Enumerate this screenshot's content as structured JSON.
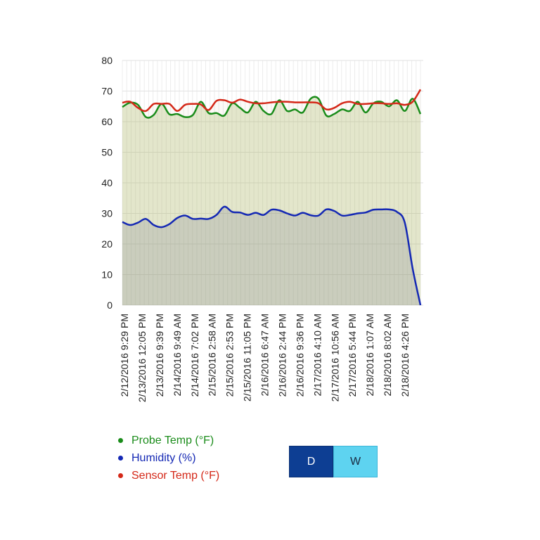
{
  "chart_data": {
    "type": "area",
    "ylim": [
      0,
      80
    ],
    "yticks": [
      0,
      10,
      20,
      30,
      40,
      50,
      60,
      70,
      80
    ],
    "grid": true,
    "x_tick_labels": [
      "2/12/2016 9:29 PM",
      "2/13/2016 12:05 PM",
      "2/13/2016 9:39 PM",
      "2/14/2016 9:49 AM",
      "2/14/2016 7:02 PM",
      "2/15/2016 2:58 AM",
      "2/15/2016 2:53 PM",
      "2/15/2016 11:05 PM",
      "2/16/2016 6:47 AM",
      "2/16/2016 2:44 PM",
      "2/16/2016 9:36 PM",
      "2/17/2016 4:10 AM",
      "2/17/2016 10:56 AM",
      "2/17/2016 5:44 PM",
      "2/18/2016 1:07 AM",
      "2/18/2016 8:02 AM",
      "2/18/2016 4:26 PM"
    ],
    "series": [
      {
        "name": "Probe Temp (°F)",
        "color": "#1a8c1a",
        "values": [
          64.8,
          66.2,
          65.5,
          61.5,
          62.2,
          65.8,
          62.4,
          62.5,
          61.5,
          62.2,
          66.5,
          62.8,
          62.8,
          62.0,
          66.0,
          64.5,
          63.0,
          66.5,
          63.5,
          62.5,
          67.0,
          63.5,
          64.0,
          63.0,
          67.5,
          67.5,
          62.0,
          62.5,
          64.0,
          63.5,
          66.5,
          63.0,
          66.0,
          66.5,
          65.0,
          67.0,
          63.5,
          67.5,
          62.5
        ]
      },
      {
        "name": "Humidity (%)",
        "color": "#1428b4",
        "values": [
          27.2,
          26.2,
          27.0,
          28.2,
          26.2,
          25.5,
          26.5,
          28.5,
          29.3,
          28.2,
          28.3,
          28.2,
          29.5,
          32.2,
          30.5,
          30.3,
          29.5,
          30.2,
          29.5,
          31.2,
          31.0,
          30.0,
          29.3,
          30.2,
          29.4,
          29.3,
          31.3,
          30.8,
          29.3,
          29.5,
          30.0,
          30.3,
          31.2,
          31.3,
          31.3,
          30.5,
          27.0,
          12.0,
          0.0
        ]
      },
      {
        "name": "Sensor Temp (°F)",
        "color": "#d42818",
        "values": [
          66.2,
          66.5,
          64.5,
          63.5,
          65.8,
          65.8,
          65.8,
          63.5,
          65.5,
          65.8,
          65.6,
          63.8,
          66.8,
          67.0,
          66.2,
          67.2,
          66.5,
          66.0,
          66.0,
          66.3,
          66.5,
          66.5,
          66.3,
          66.3,
          66.3,
          66.0,
          64.0,
          64.5,
          66.0,
          66.5,
          65.8,
          65.8,
          66.0,
          66.0,
          65.8,
          66.0,
          65.5,
          66.5,
          70.5
        ]
      }
    ]
  },
  "legend": {
    "items": [
      {
        "label": "Probe Temp (°F)",
        "color": "#1a8c1a"
      },
      {
        "label": "Humidity (%)",
        "color": "#1428b4"
      },
      {
        "label": "Sensor Temp (°F)",
        "color": "#d42818"
      }
    ]
  },
  "range_toggle": {
    "day_label": "D",
    "week_label": "W",
    "selected": "D",
    "active_color": "#0d3e93",
    "inactive_color": "#5ed3f0"
  }
}
